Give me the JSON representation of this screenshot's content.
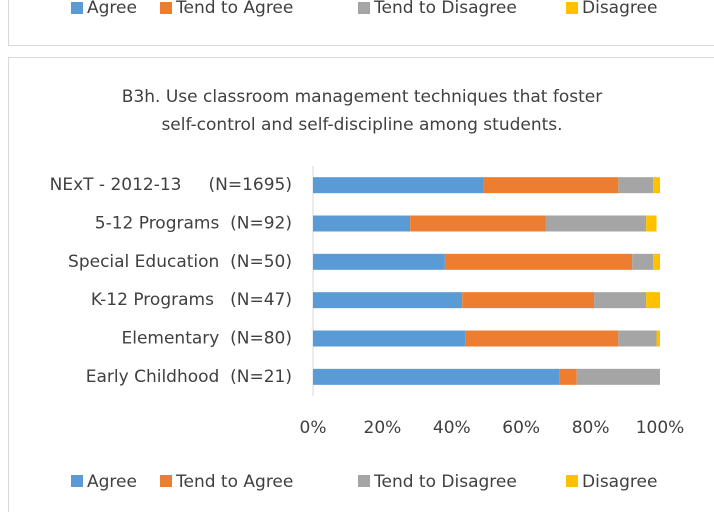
{
  "top_legend": [
    "Agree",
    "Tend to Agree",
    "Tend to Disagree",
    "Disagree"
  ],
  "chart_data": {
    "type": "stacked-bar-horizontal",
    "title": [
      "B3h. Use classroom management techniques that foster",
      "self-control and self-discipline among students."
    ],
    "categories": [
      "NExT - 2012-13     (N=1695)",
      "5-12 Programs  (N=92)",
      "Special Education  (N=50)",
      "K-12 Programs   (N=47)",
      "Elementary  (N=80)",
      "Early Childhood  (N=21)"
    ],
    "series": [
      {
        "name": "Agree",
        "color": "#5b9bd5",
        "values": [
          49,
          28,
          38,
          43,
          44,
          71
        ]
      },
      {
        "name": "Tend to Agree",
        "color": "#ed7d31",
        "values": [
          39,
          39,
          54,
          38,
          44,
          5
        ]
      },
      {
        "name": "Tend to Disagree",
        "color": "#a5a5a5",
        "values": [
          10,
          29,
          6,
          15,
          11,
          24
        ]
      },
      {
        "name": "Disagree",
        "color": "#ffc000",
        "values": [
          2,
          3,
          2,
          4,
          1,
          0
        ]
      }
    ],
    "xlim": [
      0,
      100
    ],
    "xticks": [
      {
        "value": 0,
        "label": "0%"
      },
      {
        "value": 20,
        "label": "20%"
      },
      {
        "value": 40,
        "label": "40%"
      },
      {
        "value": 60,
        "label": "60%"
      },
      {
        "value": 80,
        "label": "80%"
      },
      {
        "value": 100,
        "label": "100%"
      }
    ],
    "legend": "bottom"
  }
}
